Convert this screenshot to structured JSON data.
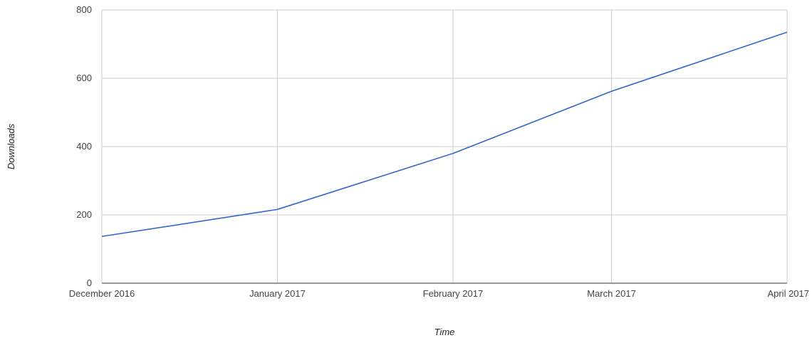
{
  "chart_data": {
    "type": "line",
    "title": "",
    "xlabel": "Time",
    "ylabel": "Downloads",
    "x": [
      "December 2016",
      "January 2017",
      "February 2017",
      "March 2017",
      "April 2017"
    ],
    "x_dates": [
      "2016-12-01",
      "2017-01-01",
      "2017-02-01",
      "2017-03-01",
      "2017-04-01"
    ],
    "series": [
      {
        "values": [
          137,
          216,
          380,
          562,
          735
        ],
        "color": "#3366cc"
      }
    ],
    "ylim": [
      0,
      800
    ],
    "yticks": [
      0,
      200,
      400,
      600,
      800
    ],
    "grid": true,
    "legend": "none",
    "colors": {
      "line": "#3366cc",
      "grid": "#cccccc",
      "baseline": "#333333"
    }
  }
}
